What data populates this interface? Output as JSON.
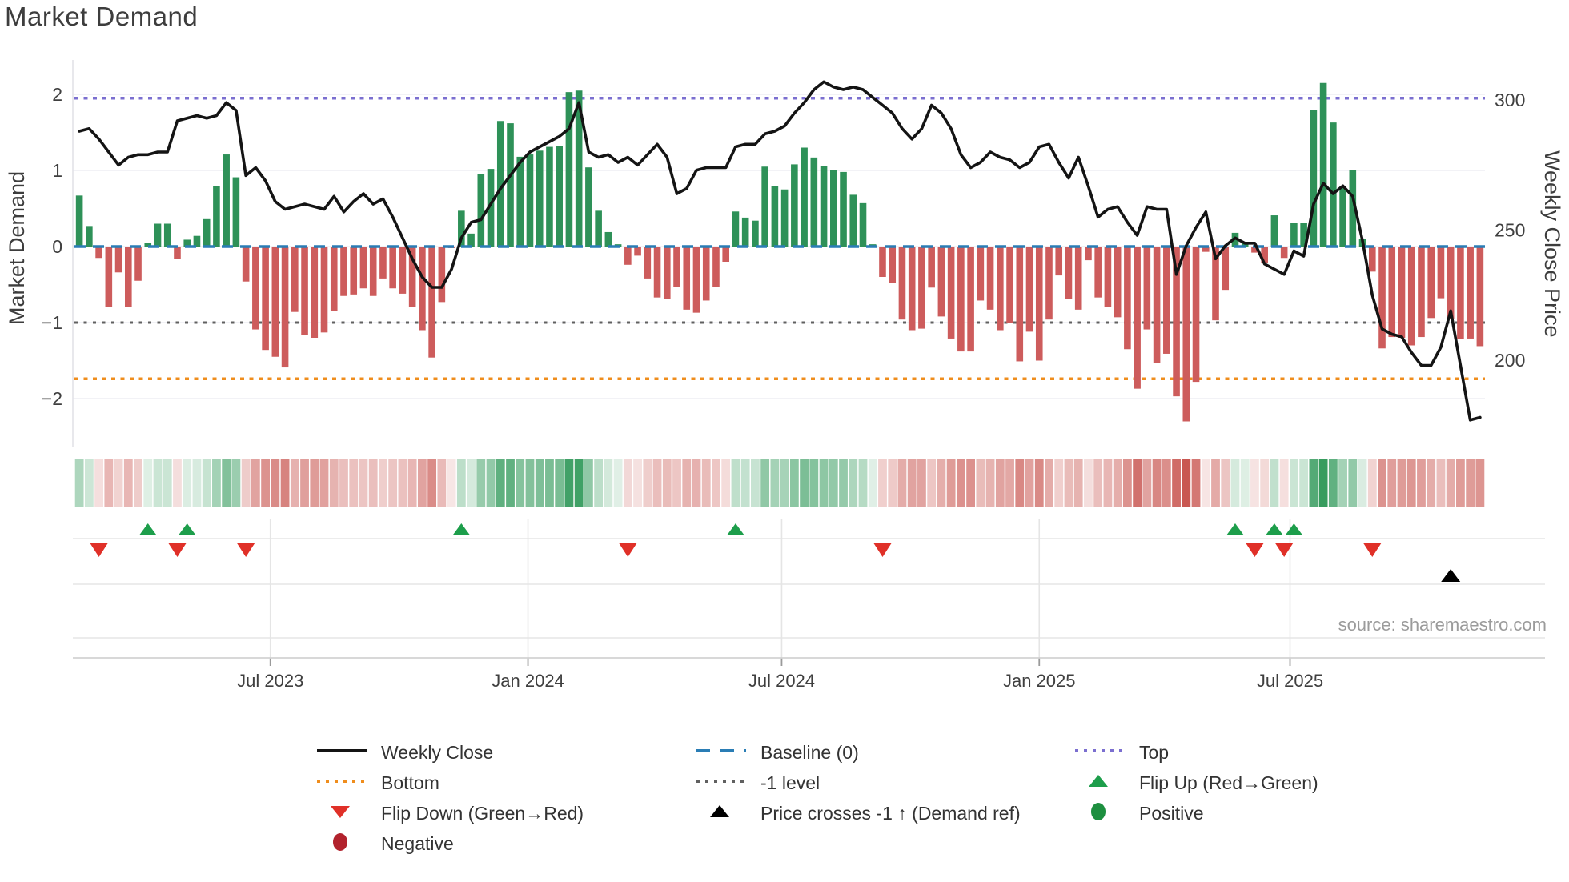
{
  "title": "Market Demand",
  "y_left_label": "Market Demand",
  "y_right_label": "Weekly Close Price",
  "source": "source: sharemaestro.com",
  "colors": {
    "bar_positive": "#2e9158",
    "bar_negative": "#cd5c5c",
    "price_line": "#141414",
    "baseline": "#2a7db5",
    "top_line": "#7b6fd0",
    "bottom_line": "#ef8d1d",
    "minus_one_line": "#606060",
    "flip_up": "#1d9e4b",
    "flip_down": "#e03028",
    "price_cross": "#000000",
    "positive_dot": "#1d8f3f",
    "negative_dot": "#b2222d",
    "grid": "#ededf3",
    "marker_grid": "#e5e5e5",
    "tick_text": "#3f3f3f"
  },
  "chart_data": {
    "type": "bar+line combo with signal heatmap and event markers",
    "title": "Market Demand",
    "xlabel": "",
    "ylabel_left": "Market Demand",
    "ylabel_right": "Weekly Close Price",
    "x_tick_labels": [
      "Jul 2023",
      "Jan 2024",
      "Jul 2024",
      "Jan 2025",
      "Jul 2025"
    ],
    "x_tick_weeks": [
      19.5,
      45.8,
      71.7,
      98.0,
      123.6
    ],
    "y_left_ticks": [
      "2",
      "1",
      "0",
      "−1",
      "−2"
    ],
    "y_left_tick_values": [
      2,
      1,
      0,
      -1,
      -2
    ],
    "y_left_range": [
      -2.45,
      2.35
    ],
    "y_right_ticks": [
      "300",
      "250",
      "200"
    ],
    "y_right_tick_values": [
      300,
      250,
      200
    ],
    "reference_lines": {
      "top": 1.95,
      "baseline": 0,
      "minus_one": -1,
      "bottom": -1.74
    },
    "demand_bars": [
      0.67,
      0.27,
      -0.15,
      -0.79,
      -0.34,
      -0.79,
      -0.45,
      0.05,
      0.3,
      0.3,
      -0.16,
      0.09,
      0.14,
      0.36,
      0.79,
      1.21,
      0.91,
      -0.46,
      -1.09,
      -1.36,
      -1.45,
      -1.59,
      -0.86,
      -1.16,
      -1.2,
      -1.13,
      -0.85,
      -0.65,
      -0.63,
      -0.55,
      -0.65,
      -0.42,
      -0.55,
      -0.62,
      -0.79,
      -1.1,
      -1.46,
      -0.73,
      -0.02,
      0.47,
      0.17,
      0.95,
      1.02,
      1.65,
      1.62,
      1.18,
      1.21,
      1.26,
      1.31,
      1.32,
      2.03,
      2.05,
      1.04,
      0.47,
      0.19,
      0.03,
      -0.24,
      -0.12,
      -0.42,
      -0.67,
      -0.69,
      -0.53,
      -0.83,
      -0.87,
      -0.71,
      -0.53,
      -0.2,
      0.46,
      0.38,
      0.34,
      1.05,
      0.79,
      0.75,
      1.08,
      1.3,
      1.17,
      1.06,
      1.0,
      0.98,
      0.68,
      0.57,
      0.03,
      -0.4,
      -0.48,
      -0.96,
      -1.1,
      -1.08,
      -0.54,
      -0.92,
      -1.21,
      -1.38,
      -1.38,
      -0.71,
      -0.83,
      -1.1,
      -1.0,
      -1.51,
      -1.12,
      -1.5,
      -0.96,
      -0.38,
      -0.69,
      -0.83,
      -0.18,
      -0.67,
      -0.79,
      -0.93,
      -1.35,
      -1.87,
      -1.09,
      -1.53,
      -1.41,
      -1.97,
      -2.3,
      -1.78,
      -0.07,
      -0.97,
      -0.57,
      0.18,
      0.06,
      -0.08,
      -0.22,
      0.41,
      -0.15,
      0.31,
      0.31,
      1.8,
      2.15,
      1.63,
      0.79,
      1.01,
      0.1,
      -0.33,
      -1.34,
      -1.19,
      -1.2,
      -1.3,
      -1.19,
      -0.94,
      -0.68,
      -0.95,
      -1.22,
      -1.21,
      -1.31
    ],
    "weekly_close_price": [
      288,
      289,
      285,
      280,
      275,
      278,
      279,
      279,
      280,
      280,
      292,
      293,
      294,
      293,
      294,
      299,
      296,
      271,
      274,
      269,
      261,
      258,
      259,
      260,
      259,
      258,
      263,
      257,
      261,
      264,
      260,
      262,
      255,
      247,
      239,
      232,
      228,
      228,
      235,
      247,
      253,
      254,
      260,
      266,
      271,
      276,
      280,
      282,
      284,
      286,
      289,
      299,
      280,
      278,
      279,
      276,
      278,
      275,
      279,
      283,
      278,
      264,
      266,
      273,
      274,
      274,
      274,
      282,
      283,
      283,
      287,
      288,
      290,
      295,
      299,
      304,
      307,
      305,
      304,
      305,
      304,
      301,
      298,
      295,
      289,
      285,
      289,
      298,
      295,
      289,
      279,
      274,
      276,
      280,
      278,
      277,
      274,
      276,
      282,
      283,
      276,
      270,
      278,
      267,
      255,
      258,
      259,
      253,
      248,
      259,
      258,
      258,
      233,
      244,
      251,
      257,
      239,
      244,
      247,
      245,
      245,
      237,
      235,
      233,
      242,
      240,
      260,
      268,
      264,
      267,
      263,
      246,
      225,
      212,
      210,
      209,
      203,
      198,
      198,
      205,
      219,
      198,
      177,
      178
    ],
    "flip_up_weeks": [
      7,
      11,
      39,
      67,
      118,
      122,
      124
    ],
    "flip_down_weeks": [
      2,
      10,
      17,
      56,
      82,
      120,
      123,
      132
    ],
    "price_cross_up_weeks": [
      140
    ],
    "heatmap": "signal strip mirrors demand_bars: green shades for positive weeks, red shades for negative weeks, intensity proportional to |value|",
    "legend_position": "bottom",
    "grid": "horizontal only in main panel"
  },
  "legend": {
    "rows": [
      [
        {
          "glyph": "line",
          "color": "#141414",
          "label": "Weekly Close"
        },
        {
          "glyph": "dash",
          "color": "#2a7db5",
          "label": "Baseline (0)"
        },
        {
          "glyph": "dots",
          "color": "#7b6fd0",
          "label": "Top"
        }
      ],
      [
        {
          "glyph": "dots",
          "color": "#ef8d1d",
          "label": "Bottom"
        },
        {
          "glyph": "dots",
          "color": "#606060",
          "label": "-1 level"
        },
        {
          "glyph": "tri-up",
          "color": "#1d9e4b",
          "label": "Flip Up (Red→Green)"
        }
      ],
      [
        {
          "glyph": "tri-down",
          "color": "#e03028",
          "label": "Flip Down (Green→Red)"
        },
        {
          "glyph": "tri-up",
          "color": "#000000",
          "label": "Price crosses -1 ↑ (Demand ref)"
        },
        {
          "glyph": "circle",
          "color": "#1d8f3f",
          "label": "Positive"
        }
      ],
      [
        {
          "glyph": "circle",
          "color": "#b2222d",
          "label": "Negative"
        }
      ]
    ]
  }
}
